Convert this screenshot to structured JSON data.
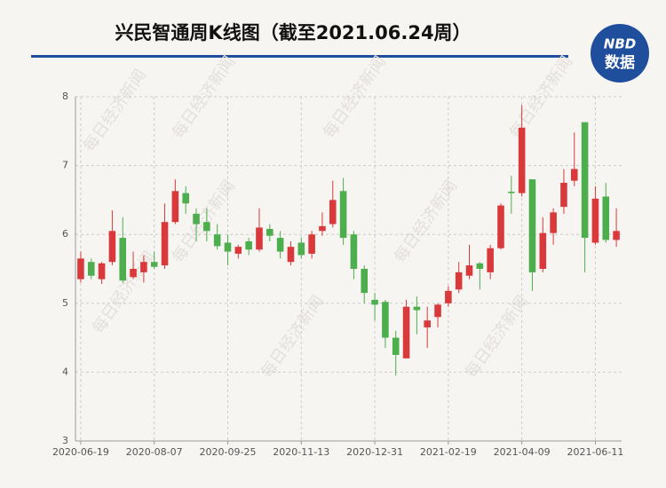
{
  "chart_data": {
    "type": "candlestick",
    "title": "兴民智通周K线图（截至2021.06.24周）",
    "logo": {
      "top": "NBD",
      "bottom": "数据"
    },
    "watermark": "每日经济新闻",
    "categories": [
      "2020-06-19",
      null,
      null,
      null,
      null,
      null,
      null,
      "2020-08-07",
      null,
      null,
      null,
      null,
      null,
      null,
      "2020-09-25",
      null,
      null,
      null,
      null,
      null,
      null,
      "2020-11-13",
      null,
      null,
      null,
      null,
      null,
      null,
      "2020-12-31",
      null,
      null,
      null,
      null,
      null,
      null,
      "2021-02-19",
      null,
      null,
      null,
      null,
      null,
      null,
      "2021-04-09",
      null,
      null,
      null,
      null,
      null,
      null,
      "2021-06-11",
      null,
      null
    ],
    "open": [
      5.35,
      5.6,
      5.35,
      5.6,
      5.95,
      5.38,
      5.45,
      5.6,
      5.55,
      6.18,
      6.6,
      6.3,
      6.18,
      6.0,
      5.88,
      5.72,
      5.9,
      5.78,
      6.08,
      5.95,
      5.6,
      5.88,
      5.72,
      6.05,
      6.15,
      6.63,
      6.0,
      5.5,
      5.05,
      5.02,
      4.5,
      4.2,
      4.95,
      4.65,
      4.8,
      5.0,
      5.2,
      5.4,
      5.58,
      5.45,
      5.8,
      6.62,
      6.6,
      6.8,
      5.5,
      6.02,
      6.4,
      6.78,
      7.63,
      5.88,
      6.55,
      5.92
    ],
    "high": [
      5.75,
      5.65,
      5.6,
      6.35,
      6.25,
      5.75,
      5.7,
      5.75,
      6.45,
      6.8,
      6.7,
      6.38,
      6.38,
      6.15,
      6.0,
      5.85,
      5.95,
      6.38,
      6.15,
      6.05,
      5.9,
      5.95,
      6.05,
      6.32,
      6.78,
      6.82,
      6.05,
      5.55,
      5.15,
      5.05,
      4.6,
      5.05,
      5.1,
      4.95,
      5.0,
      5.25,
      5.6,
      5.85,
      5.6,
      5.85,
      6.45,
      6.85,
      7.88,
      6.8,
      6.25,
      6.38,
      6.95,
      7.48,
      7.63,
      6.7,
      6.75,
      6.38
    ],
    "low": [
      5.3,
      5.35,
      5.28,
      5.55,
      5.3,
      5.35,
      5.3,
      5.5,
      5.5,
      6.15,
      6.3,
      5.9,
      5.9,
      5.78,
      5.55,
      5.65,
      5.7,
      5.75,
      5.9,
      5.65,
      5.55,
      5.65,
      5.65,
      5.98,
      6.1,
      5.85,
      5.35,
      5.0,
      4.75,
      4.35,
      3.95,
      4.2,
      4.55,
      4.35,
      4.65,
      4.95,
      5.15,
      5.35,
      5.2,
      5.35,
      5.78,
      6.3,
      6.55,
      5.18,
      5.45,
      5.85,
      6.3,
      6.7,
      5.45,
      5.85,
      5.88,
      5.82
    ],
    "close": [
      5.65,
      5.4,
      5.58,
      6.05,
      5.33,
      5.5,
      5.6,
      5.53,
      6.18,
      6.63,
      6.45,
      6.15,
      6.05,
      5.83,
      5.75,
      5.82,
      5.78,
      6.1,
      5.98,
      5.75,
      5.82,
      5.7,
      6.0,
      6.12,
      6.5,
      5.95,
      5.5,
      5.15,
      4.98,
      4.5,
      4.25,
      4.95,
      4.9,
      4.75,
      4.98,
      5.18,
      5.45,
      5.55,
      5.5,
      5.8,
      6.42,
      6.6,
      7.55,
      5.45,
      6.02,
      6.32,
      6.75,
      6.95,
      5.95,
      6.52,
      5.92,
      6.05
    ],
    "up_color": "#d9393a",
    "down_color": "#4cae4c",
    "ylim": [
      3,
      8
    ],
    "yticks": [
      3,
      4,
      5,
      6,
      7,
      8
    ],
    "grid": true
  }
}
